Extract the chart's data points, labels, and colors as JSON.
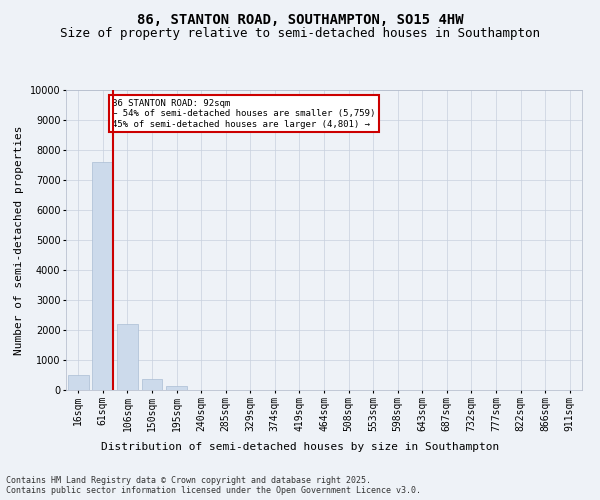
{
  "title": "86, STANTON ROAD, SOUTHAMPTON, SO15 4HW",
  "subtitle": "Size of property relative to semi-detached houses in Southampton",
  "xlabel": "Distribution of semi-detached houses by size in Southampton",
  "ylabel": "Number of semi-detached properties",
  "categories": [
    "16sqm",
    "61sqm",
    "106sqm",
    "150sqm",
    "195sqm",
    "240sqm",
    "285sqm",
    "329sqm",
    "374sqm",
    "419sqm",
    "464sqm",
    "508sqm",
    "553sqm",
    "598sqm",
    "643sqm",
    "687sqm",
    "732sqm",
    "777sqm",
    "822sqm",
    "866sqm",
    "911sqm"
  ],
  "values": [
    500,
    7600,
    2200,
    380,
    130,
    0,
    0,
    0,
    0,
    0,
    0,
    0,
    0,
    0,
    0,
    0,
    0,
    0,
    0,
    0,
    0
  ],
  "bar_color": "#ccdaeb",
  "bar_edge_color": "#aabdd4",
  "highlight_bar_index": 1,
  "highlight_line_color": "#cc0000",
  "annotation_text": "86 STANTON ROAD: 92sqm\n← 54% of semi-detached houses are smaller (5,759)\n45% of semi-detached houses are larger (4,801) →",
  "annotation_box_color": "#ffffff",
  "annotation_box_edge_color": "#cc0000",
  "ylim": [
    0,
    10000
  ],
  "yticks": [
    0,
    1000,
    2000,
    3000,
    4000,
    5000,
    6000,
    7000,
    8000,
    9000,
    10000
  ],
  "footer_line1": "Contains HM Land Registry data © Crown copyright and database right 2025.",
  "footer_line2": "Contains public sector information licensed under the Open Government Licence v3.0.",
  "bg_color": "#eef2f7",
  "grid_color": "#c8d0de",
  "title_fontsize": 10,
  "subtitle_fontsize": 9,
  "axis_label_fontsize": 8,
  "tick_fontsize": 7,
  "footer_fontsize": 6
}
